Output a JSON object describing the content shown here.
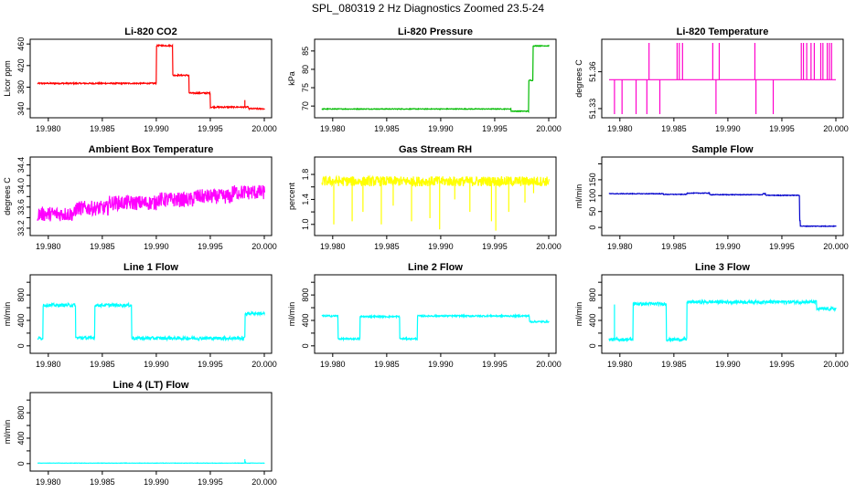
{
  "figure_title": "SPL_080319  2 Hz Diagnostics Zoomed 23.5-24",
  "chart_data": [
    {
      "type": "line",
      "title": "Li-820 CO2",
      "ylabel": "Licor ppm",
      "xlim": [
        19.979,
        20.0
      ],
      "ylim": [
        330,
        462
      ],
      "yticks": [
        340,
        380,
        420,
        460
      ],
      "yticklabels": [
        "340",
        "380",
        "420",
        "460"
      ],
      "xticks": [
        19.98,
        19.985,
        19.99,
        19.995,
        20.0
      ],
      "xticklabels": [
        "19.980",
        "19.985",
        "19.990",
        "19.995",
        "20.000"
      ],
      "color": "#ff0000",
      "noise": 1.2,
      "steps": [
        [
          19.979,
          387
        ],
        [
          19.99,
          457
        ],
        [
          19.9915,
          402
        ],
        [
          19.993,
          369
        ],
        [
          19.995,
          343
        ],
        [
          19.9985,
          340
        ]
      ],
      "spikes": [
        [
          19.9982,
          356
        ]
      ]
    },
    {
      "type": "line",
      "title": "Li-820 Pressure",
      "ylabel": "kPa",
      "xlim": [
        19.979,
        20.0
      ],
      "ylim": [
        67.8,
        87.2
      ],
      "yticks": [
        70,
        75,
        80,
        85
      ],
      "yticklabels": [
        "70",
        "75",
        "80",
        "85"
      ],
      "xticks": [
        19.98,
        19.985,
        19.99,
        19.995,
        20.0
      ],
      "xticklabels": [
        "19.980",
        "19.985",
        "19.990",
        "19.995",
        "20.000"
      ],
      "color": "#00bb00",
      "noise": 0.1,
      "steps": [
        [
          19.979,
          69.2
        ],
        [
          19.9965,
          68.6
        ],
        [
          19.9981,
          77.0
        ],
        [
          19.9985,
          86.4
        ]
      ],
      "spikes": []
    },
    {
      "type": "line",
      "title": "Li-820 Temperature",
      "ylabel": "degrees C",
      "xlim": [
        19.979,
        20.0
      ],
      "ylim": [
        51.3255,
        51.3835
      ],
      "yticks": [
        51.33,
        51.36
      ],
      "yticklabels": [
        "51.33",
        "51.36"
      ],
      "xticks": [
        19.98,
        19.985,
        19.99,
        19.995,
        20.0
      ],
      "xticklabels": [
        "19.980",
        "19.985",
        "19.990",
        "19.995",
        "20.000"
      ],
      "color": "#ff00cc",
      "noise": 0,
      "steps": [
        [
          19.979,
          51.3535
        ]
      ],
      "spikes": [
        [
          19.9795,
          51.3255
        ],
        [
          19.9802,
          51.3255
        ],
        [
          19.9815,
          51.3255
        ],
        [
          19.9825,
          51.3255
        ],
        [
          19.9827,
          51.3835
        ],
        [
          19.9837,
          51.3255
        ],
        [
          19.9853,
          51.3835
        ],
        [
          19.9855,
          51.3835
        ],
        [
          19.9858,
          51.3835
        ],
        [
          19.9886,
          51.3835
        ],
        [
          19.9889,
          51.3255
        ],
        [
          19.9892,
          51.3835
        ],
        [
          19.9925,
          51.3835
        ],
        [
          19.9926,
          51.3255
        ],
        [
          19.9942,
          51.3255
        ],
        [
          19.9968,
          51.3835
        ],
        [
          19.997,
          51.3835
        ],
        [
          19.9973,
          51.3835
        ],
        [
          19.9977,
          51.3835
        ],
        [
          19.998,
          51.3835
        ],
        [
          19.9986,
          51.3835
        ],
        [
          19.9988,
          51.3835
        ],
        [
          19.9992,
          51.3835
        ],
        [
          19.9994,
          51.3835
        ],
        [
          19.9996,
          51.3835
        ]
      ]
    },
    {
      "type": "line",
      "title": "Ambient Box Temperature",
      "ylabel": "degrees C",
      "xlim": [
        19.979,
        20.0
      ],
      "ylim": [
        33.13,
        34.48
      ],
      "yticks": [
        33.2,
        33.4,
        33.6,
        33.8,
        34.0,
        34.2,
        34.4
      ],
      "yticklabels": [
        "33.2",
        "",
        "33.6",
        "",
        "34.0",
        "",
        "34.4"
      ],
      "xticks": [
        19.98,
        19.985,
        19.99,
        19.995,
        20.0
      ],
      "xticklabels": [
        "19.980",
        "19.985",
        "19.990",
        "19.995",
        "20.000"
      ],
      "color": "#ff00ff",
      "noise": 0.14,
      "steps": [
        [
          19.979,
          33.47
        ],
        [
          19.9825,
          33.58
        ],
        [
          19.9855,
          33.68
        ],
        [
          19.99,
          33.74
        ],
        [
          19.9935,
          33.8
        ],
        [
          19.997,
          33.88
        ]
      ],
      "spikes": []
    },
    {
      "type": "line",
      "title": "Gas Stream RH",
      "ylabel": "percent",
      "xlim": [
        19.979,
        20.0
      ],
      "ylim": [
        0.88,
        2.02
      ],
      "yticks": [
        1.0,
        1.2,
        1.4,
        1.6,
        1.8
      ],
      "yticklabels": [
        "1.0",
        "",
        "1.4",
        "",
        "1.8"
      ],
      "xticks": [
        19.98,
        19.985,
        19.99,
        19.995,
        20.0
      ],
      "xticklabels": [
        "19.980",
        "19.985",
        "19.990",
        "19.995",
        "20.000"
      ],
      "color": "#ffff00",
      "noise": 0.08,
      "steps": [
        [
          19.979,
          1.69
        ]
      ],
      "spikes": [
        [
          19.9801,
          1.0
        ],
        [
          19.9818,
          1.05
        ],
        [
          19.9828,
          1.2
        ],
        [
          19.9845,
          1.0
        ],
        [
          19.9856,
          1.3
        ],
        [
          19.9873,
          1.05
        ],
        [
          19.989,
          1.1
        ],
        [
          19.9899,
          0.92
        ],
        [
          19.9913,
          1.4
        ],
        [
          19.9927,
          1.2
        ],
        [
          19.9947,
          1.05
        ],
        [
          19.9951,
          0.9
        ],
        [
          19.9963,
          1.2
        ],
        [
          19.9978,
          1.35
        ],
        [
          19.9986,
          1.5
        ]
      ]
    },
    {
      "type": "line",
      "title": "Sample Flow",
      "ylabel": "ml/min",
      "xlim": [
        19.979,
        20.0
      ],
      "ylim": [
        -14,
        210
      ],
      "yticks": [
        0,
        50,
        100,
        150,
        200
      ],
      "yticklabels": [
        "0",
        "50",
        "100",
        "150",
        ""
      ],
      "xticks": [
        19.98,
        19.985,
        19.99,
        19.995,
        20.0
      ],
      "xticklabels": [
        "19.980",
        "19.985",
        "19.990",
        "19.995",
        "20.000"
      ],
      "color": "#0000cc",
      "noise": 1.0,
      "steps": [
        [
          19.979,
          106
        ],
        [
          19.984,
          104
        ],
        [
          19.9862,
          108
        ],
        [
          19.9883,
          103
        ],
        [
          19.9932,
          106
        ],
        [
          19.9935,
          101
        ],
        [
          19.9966,
          22
        ],
        [
          19.9967,
          4
        ]
      ],
      "spikes": []
    },
    {
      "type": "line",
      "title": "Line 1 Flow",
      "ylabel": "ml/min",
      "xlim": [
        19.979,
        20.0
      ],
      "ylim": [
        -60,
        1060
      ],
      "yticks": [
        0,
        200,
        400,
        600,
        800,
        1000
      ],
      "yticklabels": [
        "0",
        "",
        "400",
        "",
        "800",
        ""
      ],
      "xticks": [
        19.98,
        19.985,
        19.99,
        19.995,
        20.0
      ],
      "xticklabels": [
        "19.980",
        "19.985",
        "19.990",
        "19.995",
        "20.000"
      ],
      "color": "#00ffff",
      "noise": 25,
      "steps": [
        [
          19.979,
          120
        ],
        [
          19.9795,
          640
        ],
        [
          19.9825,
          125
        ],
        [
          19.9843,
          640
        ],
        [
          19.9877,
          120
        ],
        [
          19.9982,
          510
        ]
      ],
      "spikes": []
    },
    {
      "type": "line",
      "title": "Line 2 Flow",
      "ylabel": "ml/min",
      "xlim": [
        19.979,
        20.0
      ],
      "ylim": [
        -60,
        1060
      ],
      "yticks": [
        0,
        200,
        400,
        600,
        800,
        1000
      ],
      "yticklabels": [
        "0",
        "",
        "400",
        "",
        "800",
        ""
      ],
      "xticks": [
        19.98,
        19.985,
        19.99,
        19.995,
        20.0
      ],
      "xticklabels": [
        "19.980",
        "19.985",
        "19.990",
        "19.995",
        "20.000"
      ],
      "color": "#00ffff",
      "noise": 12,
      "steps": [
        [
          19.979,
          470
        ],
        [
          19.9805,
          110
        ],
        [
          19.9825,
          460
        ],
        [
          19.9862,
          112
        ],
        [
          19.9878,
          470
        ],
        [
          19.9982,
          380
        ]
      ],
      "spikes": []
    },
    {
      "type": "line",
      "title": "Line 3 Flow",
      "ylabel": "ml/min",
      "xlim": [
        19.979,
        20.0
      ],
      "ylim": [
        -60,
        1060
      ],
      "yticks": [
        0,
        200,
        400,
        600,
        800,
        1000
      ],
      "yticklabels": [
        "0",
        "",
        "400",
        "",
        "800",
        ""
      ],
      "xticks": [
        19.98,
        19.985,
        19.99,
        19.995,
        20.0
      ],
      "xticklabels": [
        "19.980",
        "19.985",
        "19.990",
        "19.995",
        "20.000"
      ],
      "color": "#00ffff",
      "noise": 25,
      "steps": [
        [
          19.979,
          100
        ],
        [
          19.9812,
          660
        ],
        [
          19.9843,
          100
        ],
        [
          19.9862,
          690
        ],
        [
          19.9982,
          580
        ]
      ],
      "spikes": [
        [
          19.9795,
          650
        ]
      ]
    },
    {
      "type": "line",
      "title": "Line 4 (LT) Flow",
      "ylabel": "ml/min",
      "xlim": [
        19.979,
        20.0
      ],
      "ylim": [
        -60,
        1060
      ],
      "yticks": [
        0,
        200,
        400,
        600,
        800,
        1000
      ],
      "yticklabels": [
        "0",
        "",
        "400",
        "",
        "800",
        ""
      ],
      "xticks": [
        19.98,
        19.985,
        19.99,
        19.995,
        20.0
      ],
      "xticklabels": [
        "19.980",
        "19.985",
        "19.990",
        "19.995",
        "20.000"
      ],
      "color": "#00ffff",
      "noise": 2,
      "steps": [
        [
          19.979,
          8
        ]
      ],
      "spikes": [
        [
          19.9982,
          70
        ],
        [
          19.99825,
          35
        ]
      ]
    }
  ]
}
